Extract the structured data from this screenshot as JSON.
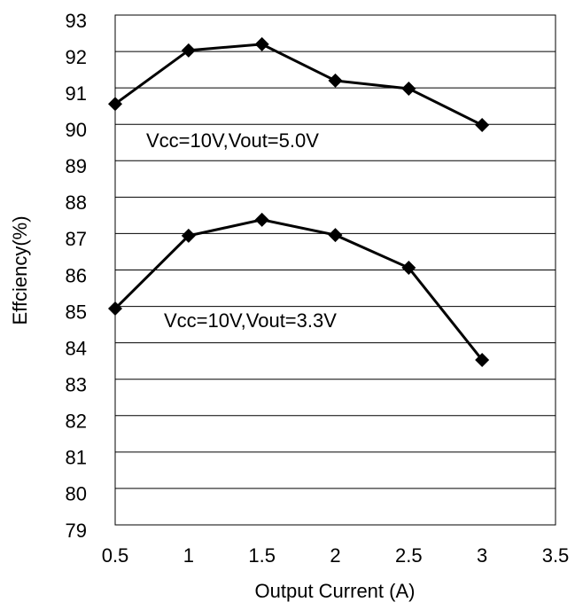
{
  "chart_data": {
    "type": "line",
    "x_label": "Output Current (A)",
    "y_label": "Effciency(%)",
    "xlim": [
      0.5,
      3.5
    ],
    "xticks": [
      0.5,
      1,
      1.5,
      2,
      2.5,
      3,
      3.5
    ],
    "ylim": [
      79,
      93
    ],
    "yticks": [
      79,
      80,
      81,
      82,
      83,
      84,
      85,
      86,
      87,
      88,
      89,
      90,
      91,
      92,
      93
    ],
    "grid": true,
    "annotations": [
      "Vcc=10V,Vout=5.0V",
      "Vcc=10V,Vout=3.3V"
    ],
    "x": [
      0.5,
      1,
      1.5,
      2,
      2.5,
      3
    ],
    "series": [
      {
        "color": "#000000",
        "values": [
          90.56,
          92.03,
          92.2,
          91.2,
          90.98,
          89.98
        ]
      },
      {
        "color": "#000000",
        "values": [
          84.94,
          86.94,
          87.38,
          86.96,
          86.06,
          83.53
        ]
      }
    ]
  }
}
